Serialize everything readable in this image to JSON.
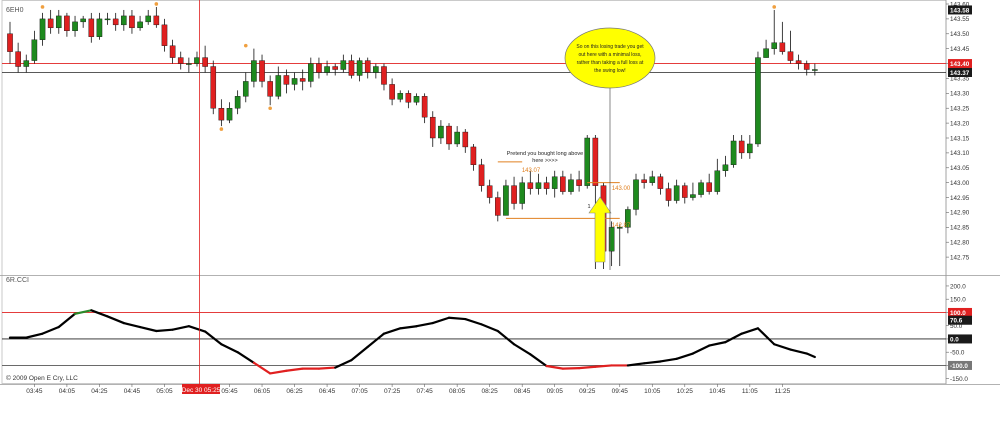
{
  "window": {
    "symbol": "6EH0",
    "indicator_label": "6R.CCI",
    "copyright": "© 2009 Open E Cry, LLC",
    "cursor_time_label": "Dec 30 05:25"
  },
  "annotations": {
    "callout": [
      "So on this losing trade you get",
      "out here with a minimal loss,",
      "rather than taking a full loss at",
      "the swing low!"
    ],
    "entry_note": [
      "Pretend you bought long above",
      "here >>>>"
    ],
    "entry_price": "143.07",
    "mid_price": "143.00",
    "stop_price": "142.87",
    "bar_count": "1"
  },
  "colors": {
    "bull": "#1e8a1e",
    "bear": "#e02020",
    "cci_normal": "#000000",
    "cci_overbought": "#2a8a2a",
    "cci_oversold": "#e02020",
    "swing_marker": "#f0a040",
    "level_line": "#e02020",
    "arrow_fill": "#ffff00",
    "callout_fill": "#ffff00"
  },
  "chart_data": [
    {
      "type": "candlestick",
      "name": "6EH0",
      "ylim": [
        142.7,
        143.6
      ],
      "yticks": [
        "143.60",
        "143.55",
        "143.50",
        "143.45",
        "143.40",
        "143.35",
        "143.30",
        "143.25",
        "143.20",
        "143.15",
        "143.10",
        "143.05",
        "143.00",
        "142.95",
        "142.90",
        "142.85",
        "142.80",
        "142.75"
      ],
      "price_labels": [
        {
          "label": "143.58",
          "value": 143.58,
          "style": "dark"
        },
        {
          "label": "143.40",
          "value": 143.4,
          "style": "red"
        },
        {
          "label": "143.37",
          "value": 143.37,
          "style": "dark"
        }
      ],
      "horizontal_lines": [
        {
          "value": 143.4,
          "color": "red"
        },
        {
          "value": 143.37,
          "color": "black"
        }
      ],
      "candles": [
        [
          143.5,
          143.44,
          143.54,
          143.4
        ],
        [
          143.44,
          143.39,
          143.47,
          143.37
        ],
        [
          143.39,
          143.41,
          143.43,
          143.37
        ],
        [
          143.41,
          143.48,
          143.51,
          143.4
        ],
        [
          143.48,
          143.55,
          143.57,
          143.46
        ],
        [
          143.55,
          143.52,
          143.58,
          143.5
        ],
        [
          143.52,
          143.56,
          143.58,
          143.5
        ],
        [
          143.56,
          143.51,
          143.57,
          143.49
        ],
        [
          143.51,
          143.54,
          143.56,
          143.49
        ],
        [
          143.54,
          143.55,
          143.56,
          143.52
        ],
        [
          143.55,
          143.49,
          143.57,
          143.47
        ],
        [
          143.49,
          143.55,
          143.57,
          143.48
        ],
        [
          143.55,
          143.55,
          143.57,
          143.53
        ],
        [
          143.55,
          143.53,
          143.57,
          143.51
        ],
        [
          143.53,
          143.56,
          143.58,
          143.51
        ],
        [
          143.56,
          143.52,
          143.58,
          143.5
        ],
        [
          143.52,
          143.54,
          143.56,
          143.51
        ],
        [
          143.54,
          143.56,
          143.58,
          143.53
        ],
        [
          143.56,
          143.53,
          143.59,
          143.52
        ],
        [
          143.53,
          143.46,
          143.55,
          143.44
        ],
        [
          143.46,
          143.42,
          143.48,
          143.4
        ],
        [
          143.42,
          143.4,
          143.44,
          143.38
        ],
        [
          143.4,
          143.4,
          143.42,
          143.37
        ],
        [
          143.4,
          143.42,
          143.44,
          143.39
        ],
        [
          143.42,
          143.39,
          143.46,
          143.37
        ],
        [
          143.39,
          143.25,
          143.41,
          143.23
        ],
        [
          143.25,
          143.21,
          143.28,
          143.19
        ],
        [
          143.21,
          143.25,
          143.27,
          143.2
        ],
        [
          143.25,
          143.29,
          143.31,
          143.23
        ],
        [
          143.29,
          143.34,
          143.37,
          143.27
        ],
        [
          143.34,
          143.41,
          143.45,
          143.32
        ],
        [
          143.41,
          143.34,
          143.43,
          143.32
        ],
        [
          143.34,
          143.29,
          143.36,
          143.26
        ],
        [
          143.29,
          143.36,
          143.39,
          143.28
        ],
        [
          143.36,
          143.33,
          143.38,
          143.3
        ],
        [
          143.33,
          143.35,
          143.37,
          143.31
        ],
        [
          143.35,
          143.34,
          143.38,
          143.31
        ],
        [
          143.34,
          143.4,
          143.42,
          143.32
        ],
        [
          143.4,
          143.37,
          143.42,
          143.35
        ],
        [
          143.37,
          143.39,
          143.41,
          143.36
        ],
        [
          143.39,
          143.38,
          143.4,
          143.36
        ],
        [
          143.38,
          143.41,
          143.43,
          143.37
        ],
        [
          143.41,
          143.36,
          143.43,
          143.35
        ],
        [
          143.36,
          143.41,
          143.42,
          143.34
        ],
        [
          143.41,
          143.37,
          143.42,
          143.35
        ],
        [
          143.37,
          143.39,
          143.4,
          143.35
        ],
        [
          143.39,
          143.33,
          143.4,
          143.31
        ],
        [
          143.33,
          143.28,
          143.35,
          143.26
        ],
        [
          143.28,
          143.3,
          143.31,
          143.27
        ],
        [
          143.3,
          143.27,
          143.31,
          143.25
        ],
        [
          143.27,
          143.29,
          143.3,
          143.26
        ],
        [
          143.29,
          143.22,
          143.3,
          143.2
        ],
        [
          143.22,
          143.15,
          143.24,
          143.12
        ],
        [
          143.15,
          143.19,
          143.21,
          143.13
        ],
        [
          143.19,
          143.13,
          143.2,
          143.11
        ],
        [
          143.13,
          143.17,
          143.19,
          143.12
        ],
        [
          143.17,
          143.12,
          143.18,
          143.1
        ],
        [
          143.12,
          143.06,
          143.13,
          143.04
        ],
        [
          143.06,
          142.99,
          143.08,
          142.97
        ],
        [
          142.99,
          142.95,
          143.01,
          142.93
        ],
        [
          142.95,
          142.89,
          142.97,
          142.87
        ],
        [
          142.89,
          142.99,
          143.01,
          142.89
        ],
        [
          142.99,
          142.93,
          143.02,
          142.91
        ],
        [
          142.93,
          143.0,
          143.02,
          142.91
        ],
        [
          143.0,
          142.98,
          143.04,
          142.96
        ],
        [
          142.98,
          143.0,
          143.03,
          142.96
        ],
        [
          143.0,
          142.98,
          143.02,
          142.96
        ],
        [
          142.98,
          143.02,
          143.04,
          142.95
        ],
        [
          143.02,
          142.97,
          143.04,
          142.96
        ],
        [
          142.97,
          143.01,
          143.03,
          142.96
        ],
        [
          143.01,
          142.99,
          143.04,
          142.97
        ],
        [
          142.99,
          143.15,
          143.16,
          142.98
        ],
        [
          143.15,
          142.99,
          143.16,
          142.71
        ],
        [
          142.99,
          142.77,
          143.0,
          142.71
        ],
        [
          142.77,
          142.85,
          142.87,
          142.72
        ],
        [
          142.85,
          142.85,
          142.86,
          142.72
        ],
        [
          142.85,
          142.91,
          142.92,
          142.83
        ],
        [
          142.91,
          143.01,
          143.03,
          142.89
        ],
        [
          143.01,
          143.0,
          143.03,
          142.98
        ],
        [
          143.0,
          143.02,
          143.04,
          142.99
        ],
        [
          143.02,
          142.98,
          143.03,
          142.96
        ],
        [
          142.98,
          142.94,
          143.0,
          142.92
        ],
        [
          142.94,
          142.99,
          143.01,
          142.93
        ],
        [
          142.99,
          142.95,
          143.0,
          142.93
        ],
        [
          142.95,
          142.96,
          143.0,
          142.94
        ],
        [
          142.96,
          143.0,
          143.01,
          142.95
        ],
        [
          143.0,
          142.97,
          143.03,
          142.96
        ],
        [
          142.97,
          143.04,
          143.08,
          142.96
        ],
        [
          143.04,
          143.06,
          143.09,
          143.02
        ],
        [
          143.06,
          143.14,
          143.16,
          143.05
        ],
        [
          143.14,
          143.1,
          143.16,
          143.08
        ],
        [
          143.1,
          143.13,
          143.16,
          143.08
        ],
        [
          143.13,
          143.42,
          143.44,
          143.12
        ],
        [
          143.42,
          143.45,
          143.48,
          143.42
        ],
        [
          143.45,
          143.47,
          143.58,
          143.43
        ],
        [
          143.47,
          143.44,
          143.54,
          143.43
        ],
        [
          143.44,
          143.41,
          143.51,
          143.4
        ],
        [
          143.41,
          143.4,
          143.43,
          143.38
        ],
        [
          143.4,
          143.38,
          143.41,
          143.36
        ],
        [
          143.38,
          143.38,
          143.4,
          143.36
        ]
      ],
      "swing_highs": [
        [
          4,
          143.58
        ],
        [
          18,
          143.59
        ],
        [
          29,
          143.45
        ],
        [
          94,
          143.58
        ]
      ],
      "swing_lows": [
        [
          26,
          143.19
        ],
        [
          32,
          143.26
        ]
      ],
      "xticks": [
        "03:45",
        "04:05",
        "04:25",
        "04:45",
        "05:05",
        "05:45",
        "06:05",
        "06:25",
        "06:45",
        "07:05",
        "07:25",
        "07:45",
        "08:05",
        "08:25",
        "08:45",
        "09:05",
        "09:25",
        "09:45",
        "10:05",
        "10:25",
        "10:45",
        "11:05",
        "11:25"
      ]
    },
    {
      "type": "line",
      "name": "6R.CCI",
      "ylim": [
        -170,
        230
      ],
      "yticks": [
        "200.0",
        "150.0",
        "100.0",
        "50.0",
        "0.0",
        "-50.0",
        "-100.0",
        "-150.0"
      ],
      "reference_lines": [
        100,
        0,
        -100
      ],
      "value_labels": [
        {
          "label": "100.0",
          "value": 100,
          "style": "red"
        },
        {
          "label": "70.6",
          "value": 70.6,
          "style": "dark"
        },
        {
          "label": "0.0",
          "value": 0,
          "style": "dark"
        },
        {
          "label": "-100.0",
          "value": -100,
          "style": "gray"
        }
      ],
      "x": [
        0,
        2,
        4,
        6,
        8,
        10,
        12,
        14,
        16,
        18,
        20,
        22,
        24,
        26,
        28,
        30,
        32,
        34,
        36,
        38,
        40,
        42,
        44,
        46,
        48,
        50,
        52,
        54,
        56,
        58,
        60,
        62,
        64,
        66,
        68,
        70,
        72,
        74,
        76,
        78,
        80,
        82,
        84,
        86,
        88,
        90,
        92,
        94,
        96,
        98,
        99
      ],
      "values": [
        5,
        5,
        20,
        45,
        95,
        108,
        85,
        60,
        45,
        30,
        35,
        48,
        28,
        -20,
        -50,
        -90,
        -130,
        -120,
        -112,
        -112,
        -108,
        -80,
        -30,
        20,
        40,
        48,
        60,
        80,
        75,
        55,
        30,
        -20,
        -58,
        -102,
        -112,
        -110,
        -105,
        -100,
        -100,
        -92,
        -85,
        -75,
        -55,
        -25,
        -12,
        20,
        40,
        -20,
        -40,
        -55,
        -68
      ]
    }
  ]
}
